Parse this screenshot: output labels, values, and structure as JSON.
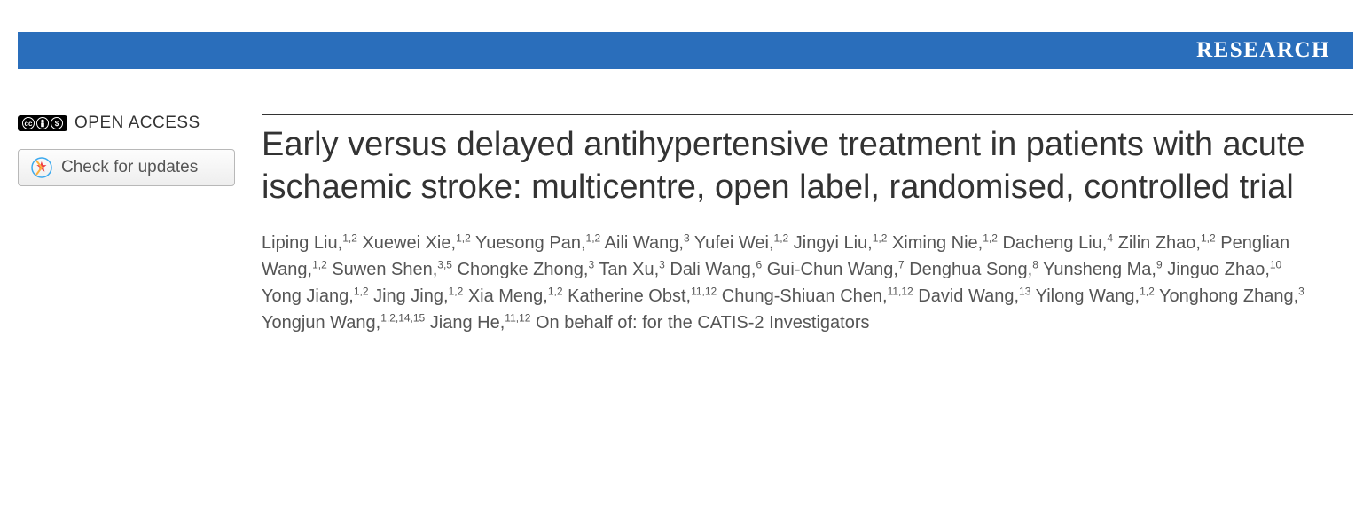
{
  "banner": {
    "label": "RESEARCH",
    "background_color": "#2a6ebb",
    "text_color": "#ffffff"
  },
  "sidebar": {
    "open_access_label": "OPEN ACCESS",
    "cc_icons": [
      "cc",
      "by",
      "nc"
    ],
    "updates_button_label": "Check for updates"
  },
  "article": {
    "title": "Early versus delayed antihypertensive treatment in patients with acute ischaemic stroke: multicentre, open label, randomised, controlled trial",
    "authors": [
      {
        "name": "Liping Liu",
        "affil": "1,2"
      },
      {
        "name": "Xuewei Xie",
        "affil": "1,2"
      },
      {
        "name": "Yuesong Pan",
        "affil": "1,2"
      },
      {
        "name": "Aili Wang",
        "affil": "3"
      },
      {
        "name": "Yufei Wei",
        "affil": "1,2"
      },
      {
        "name": "Jingyi Liu",
        "affil": "1,2"
      },
      {
        "name": "Ximing Nie",
        "affil": "1,2"
      },
      {
        "name": "Dacheng Liu",
        "affil": "4"
      },
      {
        "name": "Zilin Zhao",
        "affil": "1,2"
      },
      {
        "name": "Penglian Wang",
        "affil": "1,2"
      },
      {
        "name": "Suwen Shen",
        "affil": "3,5"
      },
      {
        "name": "Chongke Zhong",
        "affil": "3"
      },
      {
        "name": "Tan Xu",
        "affil": "3"
      },
      {
        "name": "Dali Wang",
        "affil": "6"
      },
      {
        "name": "Gui-Chun Wang",
        "affil": "7"
      },
      {
        "name": "Denghua Song",
        "affil": "8"
      },
      {
        "name": "Yunsheng Ma",
        "affil": "9"
      },
      {
        "name": "Jinguo Zhao",
        "affil": "10"
      },
      {
        "name": "Yong Jiang",
        "affil": "1,2"
      },
      {
        "name": "Jing Jing",
        "affil": "1,2"
      },
      {
        "name": "Xia Meng",
        "affil": "1,2"
      },
      {
        "name": "Katherine Obst",
        "affil": "11,12"
      },
      {
        "name": "Chung-Shiuan Chen",
        "affil": "11,12"
      },
      {
        "name": "David Wang",
        "affil": "13"
      },
      {
        "name": "Yilong Wang",
        "affil": "1,2"
      },
      {
        "name": "Yonghong Zhang",
        "affil": "3"
      },
      {
        "name": "Yongjun Wang",
        "affil": "1,2,14,15"
      },
      {
        "name": "Jiang He",
        "affil": "11,12"
      }
    ],
    "behalf_text": "On behalf of: for the CATIS-2 Investigators"
  },
  "style": {
    "title_fontsize": 38,
    "title_color": "#333333",
    "author_fontsize": 20,
    "author_color": "#555555",
    "rule_color": "#333333",
    "body_background": "#ffffff"
  }
}
